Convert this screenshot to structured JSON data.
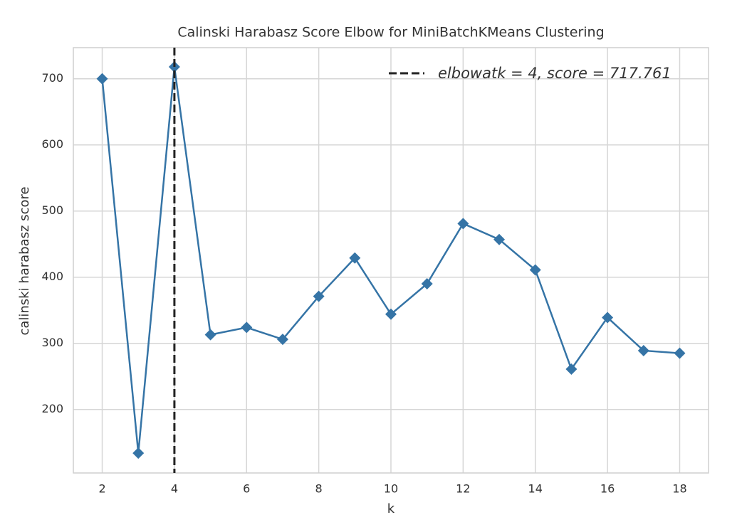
{
  "chart_data": {
    "type": "line",
    "title": "Calinski Harabasz Score Elbow for MiniBatchKMeans Clustering",
    "xlabel": "k",
    "ylabel": "calinski harabasz score",
    "x": [
      2,
      3,
      4,
      5,
      6,
      7,
      8,
      9,
      10,
      11,
      12,
      13,
      14,
      15,
      16,
      17,
      18
    ],
    "series": [
      {
        "name": null,
        "color": "#3574a6",
        "values": [
          700,
          134,
          718,
          313,
          324,
          306,
          371,
          429,
          344,
          390,
          481,
          457,
          411,
          261,
          339,
          289,
          285
        ]
      }
    ],
    "elbow": {
      "x": 4,
      "label": "elbowatk = 4, score = 717.761",
      "color": "#222222"
    },
    "xlim": [
      1.2,
      18.8
    ],
    "xticks": [
      2,
      4,
      6,
      8,
      10,
      12,
      14,
      16,
      18
    ],
    "ylim": [
      104,
      747
    ],
    "yticks": [
      200,
      300,
      400,
      500,
      600,
      700
    ],
    "grid": true,
    "legend": "upper right"
  }
}
